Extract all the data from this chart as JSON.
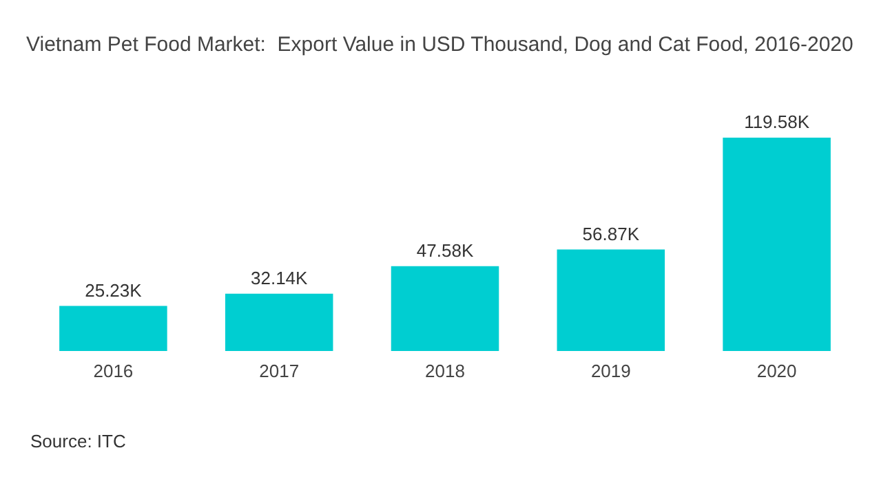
{
  "chart_data": {
    "type": "bar",
    "title": "Vietnam Pet Food Market:  Export Value in USD Thousand, Dog and Cat Food, 2016-2020",
    "categories": [
      "2016",
      "2017",
      "2018",
      "2019",
      "2020"
    ],
    "values": [
      25.23,
      32.14,
      47.58,
      56.87,
      119.58
    ],
    "value_labels": [
      "25.23K",
      "32.14K",
      "47.58K",
      "56.87K",
      "119.58K"
    ],
    "color": "#00ced1",
    "annotations": [
      "Source: ITC"
    ]
  }
}
